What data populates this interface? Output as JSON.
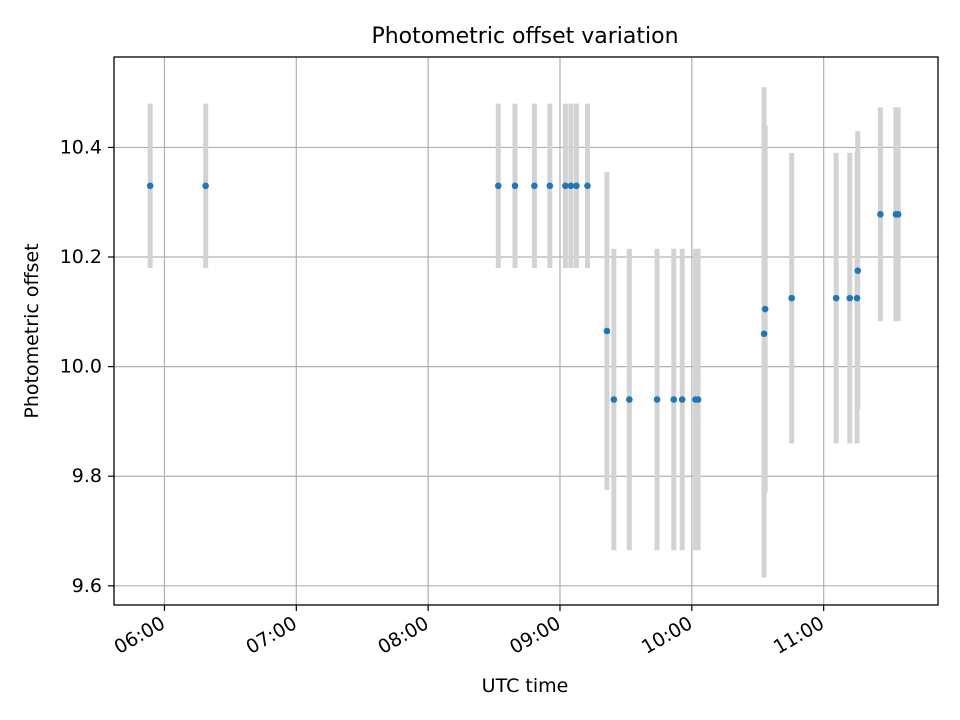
{
  "chart_data": {
    "type": "scatter",
    "title": "Photometric offset variation",
    "xlabel": "UTC time",
    "ylabel": "Photometric offset",
    "x_tick_labels": [
      "06:00",
      "07:00",
      "08:00",
      "09:00",
      "10:00",
      "11:00"
    ],
    "y_tick_labels": [
      "9.6",
      "9.8",
      "10.0",
      "10.2",
      "10.4"
    ],
    "y_ticks": [
      9.6,
      9.8,
      10.0,
      10.2,
      10.4
    ],
    "x_ticks": [
      "05:59:58",
      "06:59:58",
      "07:59:58",
      "08:59:58",
      "09:59:58",
      "10:59:58"
    ],
    "xlim": [
      "05:37",
      "11:52"
    ],
    "ylim": [
      9.565,
      10.565
    ],
    "grid": true,
    "colors": {
      "points": "#1f77b4",
      "errorbars": "#d3d3d3",
      "grid": "#b0b0b0"
    },
    "points": [
      {
        "x": "05:53:27",
        "y": 10.33,
        "err_low": 10.18,
        "err_high": 10.48
      },
      {
        "x": "06:18:43",
        "y": 10.33,
        "err_low": 10.18,
        "err_high": 10.48
      },
      {
        "x": "08:31:53",
        "y": 10.33,
        "err_low": 10.18,
        "err_high": 10.48
      },
      {
        "x": "08:39:29",
        "y": 10.33,
        "err_low": 10.18,
        "err_high": 10.48
      },
      {
        "x": "08:48:20",
        "y": 10.33,
        "err_low": 10.18,
        "err_high": 10.48
      },
      {
        "x": "08:55:21",
        "y": 10.33,
        "err_low": 10.18,
        "err_high": 10.48
      },
      {
        "x": "09:02:25",
        "y": 10.33,
        "err_low": 10.18,
        "err_high": 10.48
      },
      {
        "x": "09:04:56",
        "y": 10.33,
        "err_low": 10.18,
        "err_high": 10.48
      },
      {
        "x": "09:07:27",
        "y": 10.33,
        "err_low": 10.18,
        "err_high": 10.48
      },
      {
        "x": "09:12:29",
        "y": 10.33,
        "err_low": 10.18,
        "err_high": 10.48
      },
      {
        "x": "09:21:20",
        "y": 10.065,
        "err_low": 9.775,
        "err_high": 10.355
      },
      {
        "x": "09:24:29",
        "y": 9.94,
        "err_low": 9.665,
        "err_high": 10.215
      },
      {
        "x": "09:31:32",
        "y": 9.94,
        "err_low": 9.665,
        "err_high": 10.215
      },
      {
        "x": "09:44:09",
        "y": 9.94,
        "err_low": 9.665,
        "err_high": 10.215
      },
      {
        "x": "09:51:45",
        "y": 9.94,
        "err_low": 9.665,
        "err_high": 10.215
      },
      {
        "x": "09:55:35",
        "y": 9.94,
        "err_low": 9.665,
        "err_high": 10.215
      },
      {
        "x": "10:01:39",
        "y": 9.94,
        "err_low": 9.665,
        "err_high": 10.215
      },
      {
        "x": "10:02:49",
        "y": 9.94,
        "err_low": 9.665,
        "err_high": 10.215
      },
      {
        "x": "10:32:51",
        "y": 10.06,
        "err_low": 9.615,
        "err_high": 10.51
      },
      {
        "x": "10:33:20",
        "y": 10.105,
        "err_low": 9.77,
        "err_high": 10.44
      },
      {
        "x": "10:45:25",
        "y": 10.125,
        "err_low": 9.86,
        "err_high": 10.39
      },
      {
        "x": "11:05:39",
        "y": 10.125,
        "err_low": 9.86,
        "err_high": 10.39
      },
      {
        "x": "11:11:51",
        "y": 10.125,
        "err_low": 9.86,
        "err_high": 10.39
      },
      {
        "x": "11:15:09",
        "y": 10.125,
        "err_low": 9.86,
        "err_high": 10.39
      },
      {
        "x": "11:15:29",
        "y": 10.175,
        "err_low": 9.92,
        "err_high": 10.43
      },
      {
        "x": "11:25:48",
        "y": 10.278,
        "err_low": 10.083,
        "err_high": 10.473
      },
      {
        "x": "11:32:51",
        "y": 10.278,
        "err_low": 10.083,
        "err_high": 10.473
      },
      {
        "x": "11:33:52",
        "y": 10.278,
        "err_low": 10.083,
        "err_high": 10.473
      }
    ]
  }
}
